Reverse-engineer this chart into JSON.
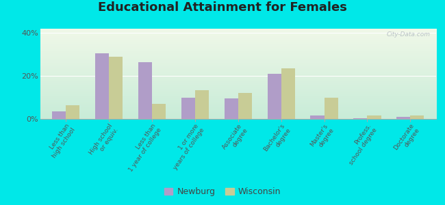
{
  "title": "Educational Attainment for Females",
  "categories": [
    "Less than\nhigh school",
    "High school\nor equiv.",
    "Less than\n1 year of college",
    "1 or more\nyears of college",
    "Associate\ndegree",
    "Bachelor's\ndegree",
    "Master's\ndegree",
    "Profess.\nschool degree",
    "Doctorate\ndegree"
  ],
  "newburg": [
    3.5,
    30.5,
    26.5,
    10.0,
    9.5,
    21.0,
    1.5,
    0.2,
    0.8
  ],
  "wisconsin": [
    6.5,
    29.0,
    7.0,
    13.5,
    12.0,
    23.5,
    10.0,
    1.5,
    1.5
  ],
  "newburg_color": "#b09dc8",
  "wisconsin_color": "#c8cc96",
  "background_top": "#f0f8e8",
  "background_bottom": "#c8ecd8",
  "outer_background": "#00e8e8",
  "ylim": [
    0,
    42
  ],
  "yticks": [
    0,
    20,
    40
  ],
  "ytick_labels": [
    "0%",
    "20%",
    "40%"
  ],
  "legend_newburg": "Newburg",
  "legend_wisconsin": "Wisconsin",
  "title_fontsize": 13,
  "tick_label_fontsize": 6.5,
  "ytick_fontsize": 8
}
